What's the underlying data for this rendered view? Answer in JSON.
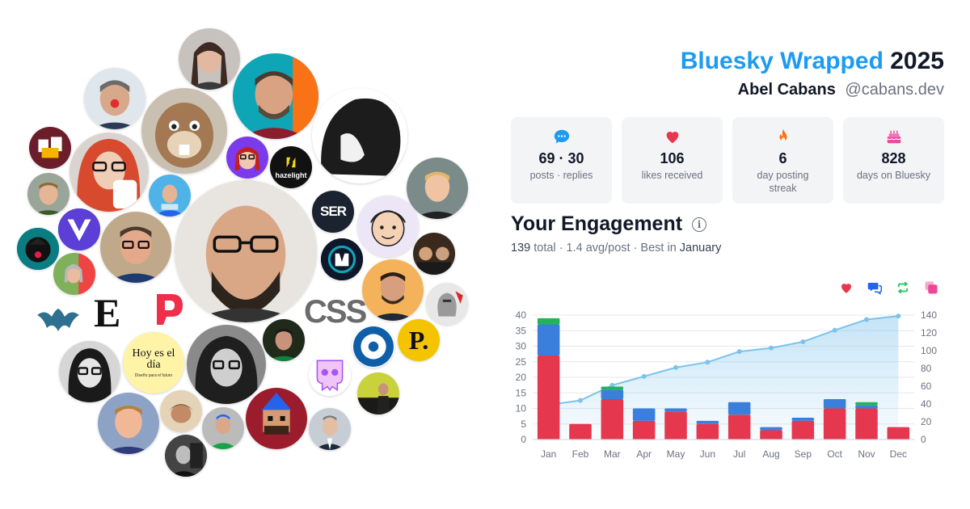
{
  "header": {
    "brand": "Bluesky Wrapped",
    "year": "2025",
    "user_name": "Abel Cabans",
    "handle": "@cabans.dev"
  },
  "stats": [
    {
      "icon": "chat-bubble-icon",
      "value": "69 · 30",
      "label": "posts · replies",
      "color": "#1d9bf0"
    },
    {
      "icon": "heart-icon",
      "value": "106",
      "label": "likes received",
      "color": "#e5384f"
    },
    {
      "icon": "fire-icon",
      "value": "6",
      "label": "day posting streak",
      "color": "#f97316"
    },
    {
      "icon": "cake-icon",
      "value": "828",
      "label": "days on Bluesky",
      "color": "#ec4899"
    }
  ],
  "engagement": {
    "title": "Your Engagement",
    "total": "139",
    "total_word": "total",
    "avg": "· 1.4 avg/post · Best in",
    "best_month": "January"
  },
  "legend": [
    {
      "icon": "heart-icon",
      "color": "#e5384f"
    },
    {
      "icon": "replies-icon",
      "color": "#2563eb"
    },
    {
      "icon": "repost-icon",
      "color": "#22c55e"
    },
    {
      "icon": "quote-icon",
      "color": "#ec4899"
    }
  ],
  "logos": {
    "hazelight": "hazelight",
    "ser": "SER",
    "css": "CSS",
    "hoy_title": "Hoy es el día",
    "hoy_sub": "Diseño para el futuro",
    "p_logo": "P.",
    "e_logo": "E"
  },
  "chart_data": {
    "type": "bar",
    "categories": [
      "Jan",
      "Feb",
      "Mar",
      "Apr",
      "May",
      "Jun",
      "Jul",
      "Aug",
      "Sep",
      "Oct",
      "Nov",
      "Dec"
    ],
    "series": [
      {
        "key": "likes",
        "color": "#e5384f",
        "values": [
          27,
          5,
          13,
          6,
          9,
          5,
          8,
          3,
          6,
          10,
          10,
          4
        ]
      },
      {
        "key": "replies",
        "color": "#3b7fdc",
        "values": [
          10,
          0,
          3,
          4,
          1,
          1,
          4,
          1,
          1,
          3,
          1,
          0
        ]
      },
      {
        "key": "reposts",
        "color": "#22b45a",
        "values": [
          2,
          0,
          1,
          0,
          0,
          0,
          0,
          0,
          0,
          0,
          1,
          0
        ]
      },
      {
        "key": "quotes",
        "color": "#ec4899",
        "values": [
          0,
          0,
          0,
          0,
          0,
          0,
          0,
          0,
          0,
          0,
          0,
          0
        ]
      }
    ],
    "cumulative": {
      "color": "#7cc3ec",
      "values": [
        39,
        44,
        61,
        71,
        81,
        87,
        99,
        103,
        110,
        123,
        135,
        139
      ]
    },
    "y_left": {
      "ticks": [
        0,
        5,
        10,
        15,
        20,
        25,
        30,
        35,
        40
      ],
      "lim": [
        0,
        40
      ]
    },
    "y_right": {
      "ticks": [
        0,
        20,
        40,
        60,
        80,
        100,
        120,
        140
      ],
      "lim": [
        0,
        140
      ]
    },
    "grid": true
  }
}
